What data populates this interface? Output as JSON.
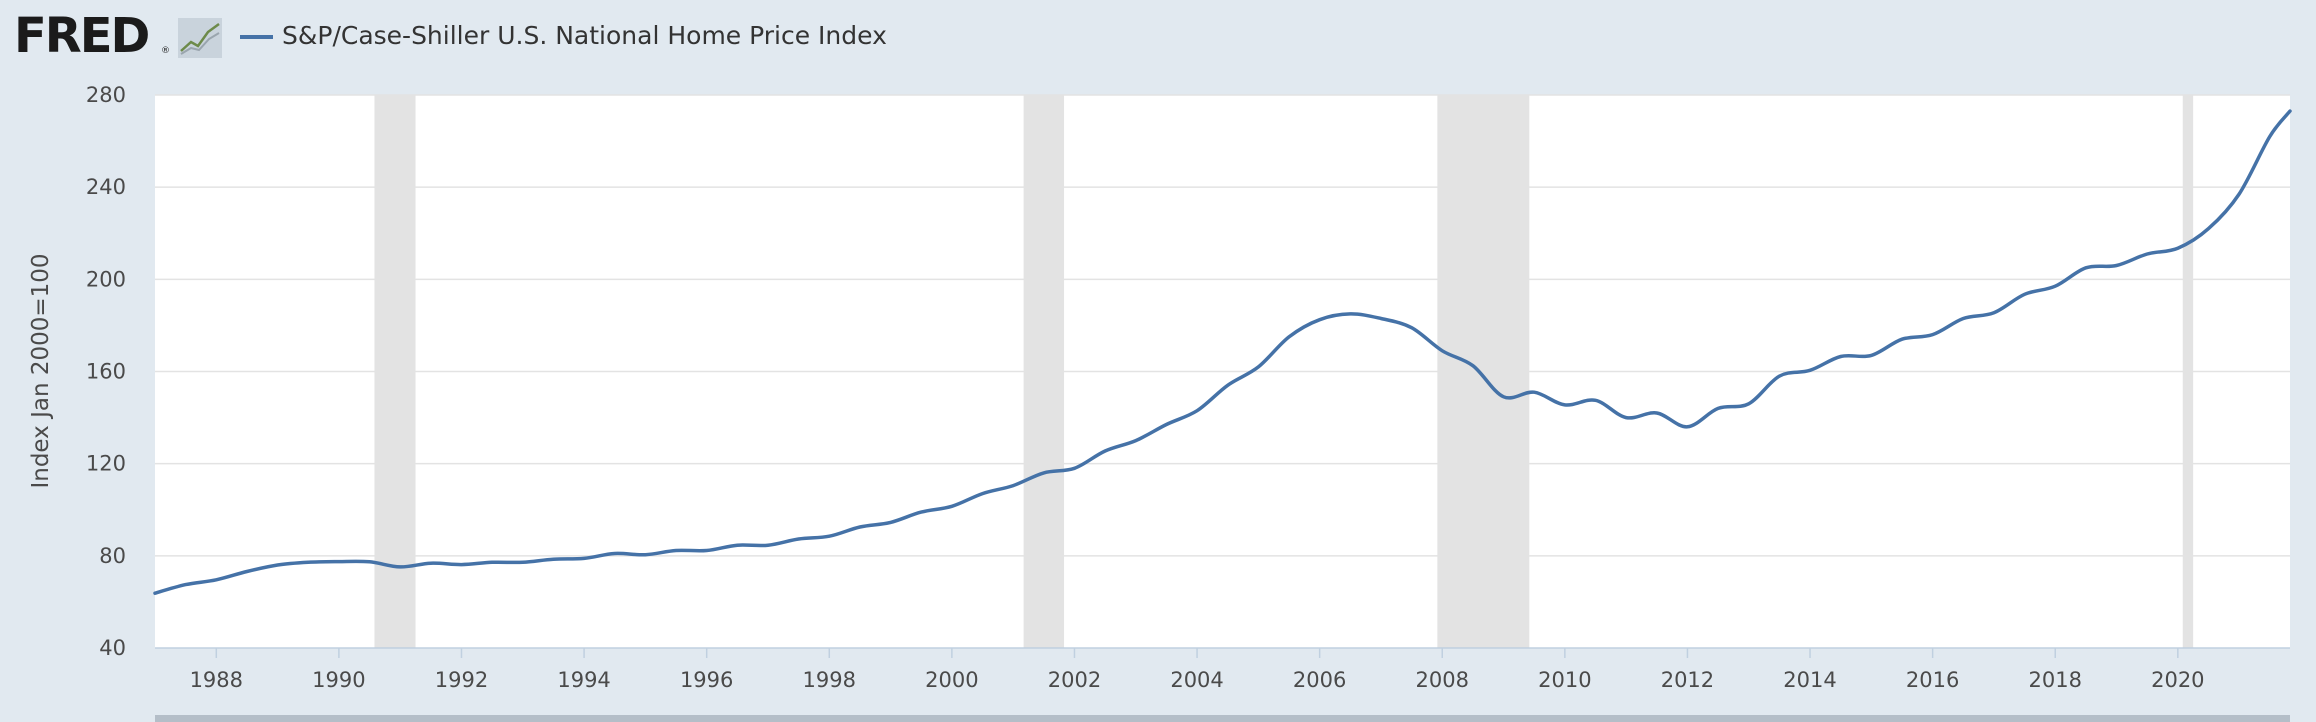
{
  "header": {
    "logo_text": "FRED",
    "logo_reg": "®",
    "logo_icon": "fred-graph-icon",
    "legend_label": "S&P/Case-Shiller U.S. National Home Price Index",
    "legend_color": "#4572a7"
  },
  "colors": {
    "page_background": "#e1e9f0",
    "plot_background": "#ffffff",
    "gridline": "#e3e3e3",
    "recession_shade": "#e3e3e3",
    "series_line": "#4572a7",
    "navigator": "#b4bec8"
  },
  "chart_data": {
    "type": "line",
    "title": "",
    "xlabel": "",
    "ylabel": "Index Jan 2000=100",
    "xlim": [
      1987.0,
      2021.83
    ],
    "ylim": [
      40,
      280
    ],
    "y_ticks": [
      40,
      80,
      120,
      160,
      200,
      240,
      280
    ],
    "x_ticks": [
      "1988",
      "1990",
      "1992",
      "1994",
      "1996",
      "1998",
      "2000",
      "2002",
      "2004",
      "2006",
      "2008",
      "2010",
      "2012",
      "2014",
      "2016",
      "2018",
      "2020"
    ],
    "grid": "horizontal",
    "legend_position": "top-left",
    "recessions": [
      [
        1990.58,
        1991.25
      ],
      [
        2001.17,
        2001.83
      ],
      [
        2007.92,
        2009.42
      ],
      [
        2020.08,
        2020.25
      ]
    ],
    "series": [
      {
        "name": "S&P/Case-Shiller U.S. National Home Price Index",
        "color": "#4572a7",
        "x": [
          1987.0,
          1987.5,
          1988.0,
          1988.5,
          1989.0,
          1989.5,
          1990.0,
          1990.5,
          1991.0,
          1991.5,
          1992.0,
          1992.5,
          1993.0,
          1993.5,
          1994.0,
          1994.5,
          1995.0,
          1995.5,
          1996.0,
          1996.5,
          1997.0,
          1997.5,
          1998.0,
          1998.5,
          1999.0,
          1999.5,
          2000.0,
          2000.5,
          2001.0,
          2001.5,
          2002.0,
          2002.5,
          2003.0,
          2003.5,
          2004.0,
          2004.5,
          2005.0,
          2005.5,
          2006.0,
          2006.5,
          2007.0,
          2007.5,
          2008.0,
          2008.5,
          2009.0,
          2009.5,
          2010.0,
          2010.5,
          2011.0,
          2011.5,
          2012.0,
          2012.5,
          2013.0,
          2013.5,
          2014.0,
          2014.5,
          2015.0,
          2015.5,
          2016.0,
          2016.5,
          2017.0,
          2017.5,
          2018.0,
          2018.5,
          2019.0,
          2019.5,
          2020.0,
          2020.5,
          2021.0,
          2021.5,
          2021.83
        ],
        "values": [
          63.8,
          67.5,
          69.6,
          73.2,
          76.0,
          77.2,
          77.5,
          77.4,
          75.2,
          76.8,
          76.2,
          77.2,
          77.2,
          78.5,
          78.9,
          81.0,
          80.5,
          82.3,
          82.3,
          84.6,
          84.6,
          87.3,
          88.5,
          92.5,
          94.5,
          99.0,
          101.5,
          107.0,
          110.5,
          116.0,
          118.0,
          125.5,
          130.0,
          137.0,
          143.0,
          154.0,
          162.0,
          175.0,
          182.5,
          185.0,
          183.0,
          179.0,
          169.0,
          162.5,
          149.0,
          151.0,
          145.5,
          147.5,
          140.0,
          142.0,
          136.0,
          144.0,
          146.0,
          158.0,
          160.5,
          166.5,
          167.0,
          174.0,
          176.0,
          183.0,
          185.5,
          193.5,
          197.0,
          205.0,
          206.0,
          211.0,
          213.5,
          222.0,
          237.0,
          262.0,
          273.0
        ]
      }
    ]
  }
}
